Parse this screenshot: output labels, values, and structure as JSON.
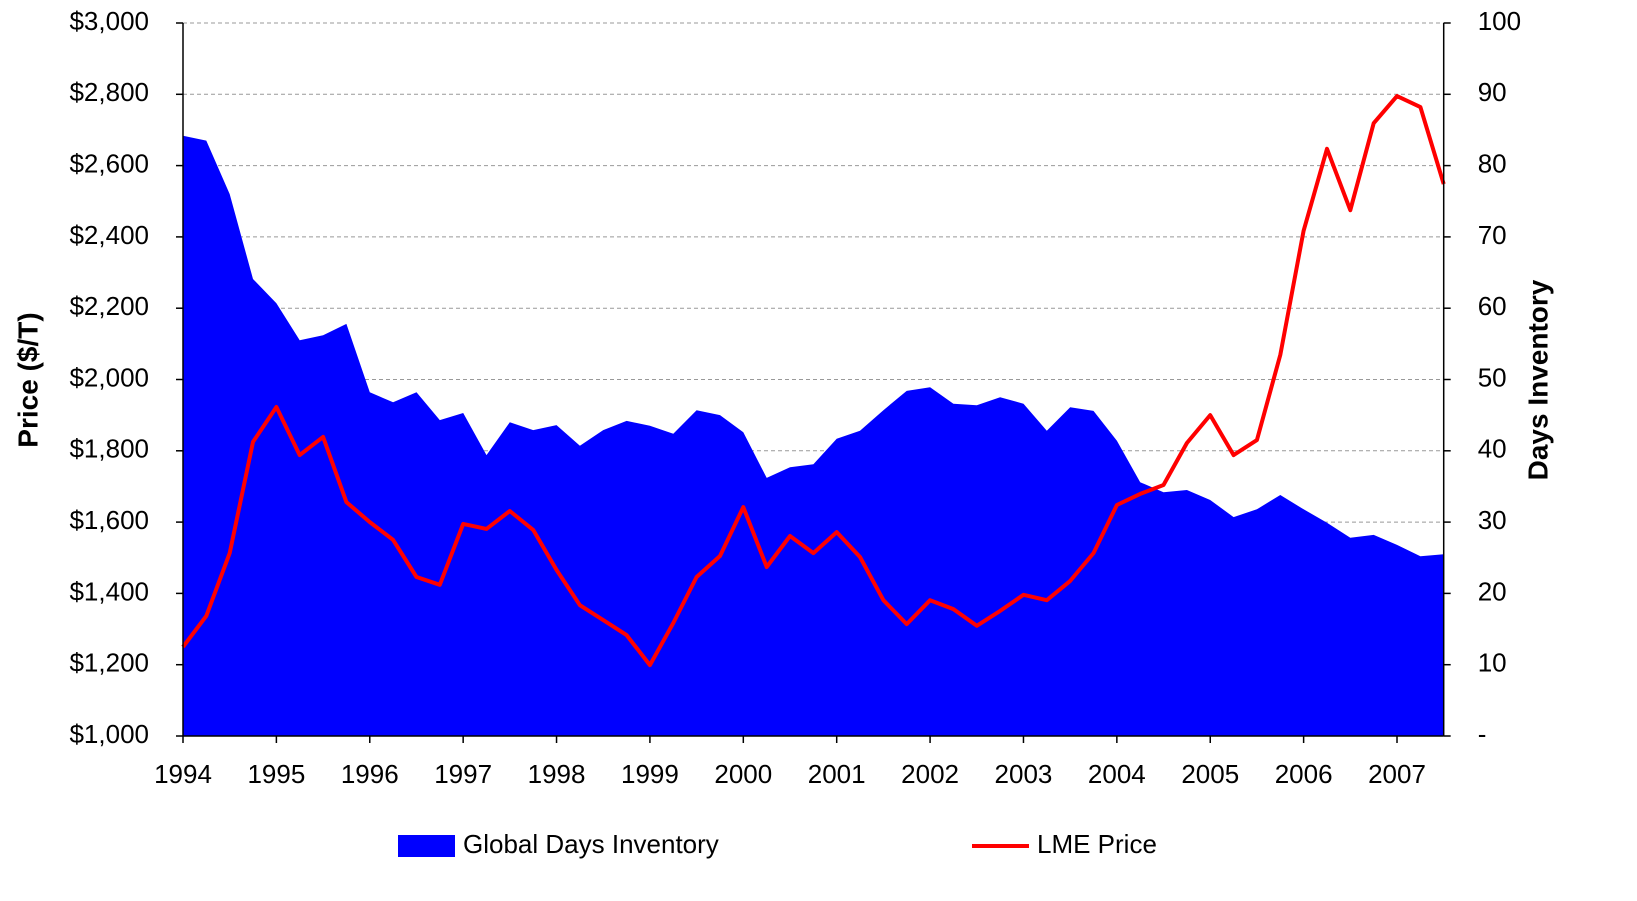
{
  "chart_data": {
    "type": "line",
    "x": [
      1994,
      1994.25,
      1994.5,
      1994.75,
      1995,
      1995.25,
      1995.5,
      1995.75,
      1996,
      1996.25,
      1996.5,
      1996.75,
      1997,
      1997.25,
      1997.5,
      1997.75,
      1998,
      1998.25,
      1998.5,
      1998.75,
      1999,
      1999.25,
      1999.5,
      1999.75,
      2000,
      2000.25,
      2000.5,
      2000.75,
      2001,
      2001.25,
      2001.5,
      2001.75,
      2002,
      2002.25,
      2002.5,
      2002.75,
      2003,
      2003.25,
      2003.5,
      2003.75,
      2004,
      2004.25,
      2004.5,
      2004.75,
      2005,
      2005.25,
      2005.5,
      2005.75,
      2006,
      2006.25,
      2006.5,
      2006.75,
      2007,
      2007.25,
      2007.5
    ],
    "series": [
      {
        "name": "Global Days Inventory",
        "type": "area",
        "axis": "y2",
        "color": "#0000ff",
        "values": [
          84.2,
          83.5,
          76,
          64.1,
          60.7,
          55.5,
          56.2,
          57.8,
          48.2,
          46.8,
          48.2,
          44.3,
          45.3,
          39.4,
          44.0,
          42.9,
          43.6,
          40.7,
          42.9,
          44.2,
          43.5,
          42.4,
          45.7,
          45.0,
          42.6,
          36.2,
          37.7,
          38.1,
          41.7,
          42.8,
          45.7,
          48.4,
          48.9,
          46.6,
          46.4,
          47.5,
          46.6,
          42.8,
          46.1,
          45.6,
          41.4,
          35.6,
          34.2,
          34.5,
          33.1,
          30.7,
          31.8,
          33.8,
          31.8,
          29.9,
          27.8,
          28.2,
          26.8,
          25.2,
          25.5
        ]
      },
      {
        "name": "LME Price",
        "type": "line",
        "color": "#ff0000",
        "values": [
          1250,
          1337,
          1513,
          1825,
          1923,
          1788,
          1839,
          1656,
          1600,
          1550,
          1446,
          1424,
          1595,
          1581,
          1631,
          1578,
          1466,
          1367,
          1325,
          1283,
          1199,
          1317,
          1446,
          1505,
          1642,
          1474,
          1561,
          1513,
          1572,
          1502,
          1381,
          1314,
          1381,
          1356,
          1309,
          1351,
          1396,
          1381,
          1435,
          1513,
          1648,
          1679,
          1704,
          1822,
          1900,
          1788,
          1830,
          2069,
          2417,
          2647,
          2475,
          2719,
          2795,
          2764,
          2548
        ]
      }
    ],
    "xlim": [
      1994,
      2007.5
    ],
    "xticks": [
      1994,
      1995,
      1996,
      1997,
      1998,
      1999,
      2000,
      2001,
      2002,
      2003,
      2004,
      2005,
      2006,
      2007
    ],
    "ylabel": "Price ($/T)",
    "ylim": [
      1000,
      3000
    ],
    "yticks": [
      {
        "value": 1000,
        "label": "$1,000"
      },
      {
        "value": 1200,
        "label": "$1,200"
      },
      {
        "value": 1400,
        "label": "$1,400"
      },
      {
        "value": 1600,
        "label": "$1,600"
      },
      {
        "value": 1800,
        "label": "$1,800"
      },
      {
        "value": 2000,
        "label": "$2,000"
      },
      {
        "value": 2200,
        "label": "$2,200"
      },
      {
        "value": 2400,
        "label": "$2,400"
      },
      {
        "value": 2600,
        "label": "$2,600"
      },
      {
        "value": 2800,
        "label": "$2,800"
      },
      {
        "value": 3000,
        "label": "$3,000"
      }
    ],
    "y2label": "Days Inventory",
    "y2lim": [
      0,
      100
    ],
    "y2ticks": [
      {
        "value": 0,
        "label": "-"
      },
      10,
      20,
      30,
      40,
      50,
      60,
      70,
      80,
      90,
      100
    ],
    "grid": true,
    "legend": "bottom"
  }
}
